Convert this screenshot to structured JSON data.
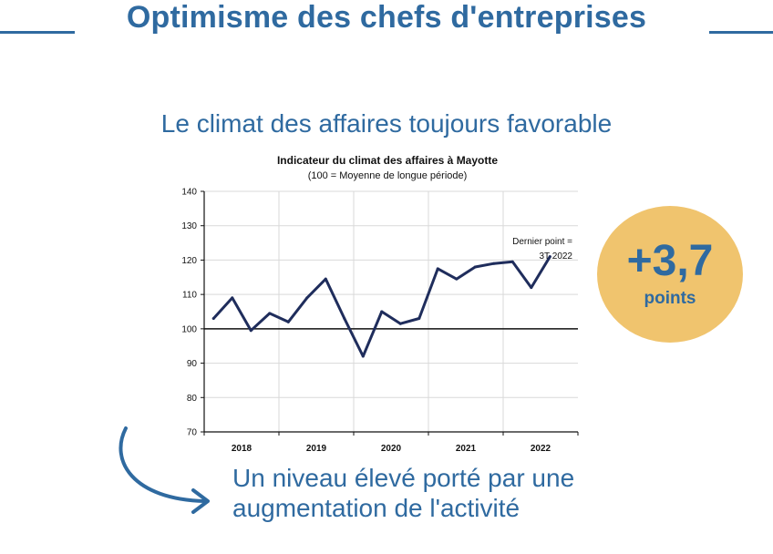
{
  "header": {
    "title": "Optimisme des chefs d'entreprises"
  },
  "subtitle": "Le climat des affaires toujours favorable",
  "badge": {
    "value": "+3,7",
    "unit": "points"
  },
  "footer": {
    "line1": "Un niveau élevé porté par une",
    "line2": "augmentation de l'activité"
  },
  "colors": {
    "accent": "#2f6aa0",
    "badge": "#f0c46e",
    "series": "#1f2d5c"
  },
  "chart_data": {
    "type": "line",
    "title": "Indicateur du climat des affaires à Mayotte",
    "subtitle": "(100 = Moyenne de longue période)",
    "xlabel": "",
    "ylabel": "",
    "ylim": [
      70,
      140
    ],
    "yticks": [
      70,
      80,
      90,
      100,
      110,
      120,
      130,
      140
    ],
    "xlim": [
      2017.875,
      2022.875
    ],
    "year_labels": [
      "2018",
      "2019",
      "2020",
      "2021",
      "2022"
    ],
    "reference_line": 100,
    "grid": true,
    "annotation": {
      "line1": "Dernier point =",
      "line2": "3T 2022"
    },
    "series": [
      {
        "x": [
          2018.0,
          2018.25,
          2018.5,
          2018.75,
          2019.0,
          2019.25,
          2019.5,
          2019.75,
          2020.0,
          2020.25,
          2020.5,
          2020.75,
          2021.0,
          2021.25,
          2021.5,
          2021.75,
          2022.0,
          2022.25,
          2022.5
        ],
        "values": [
          103,
          109,
          99.5,
          104.5,
          102,
          109,
          114.5,
          103,
          92,
          105,
          101.5,
          103,
          117.5,
          114.5,
          118,
          119,
          119.5,
          112,
          121
        ]
      }
    ]
  }
}
